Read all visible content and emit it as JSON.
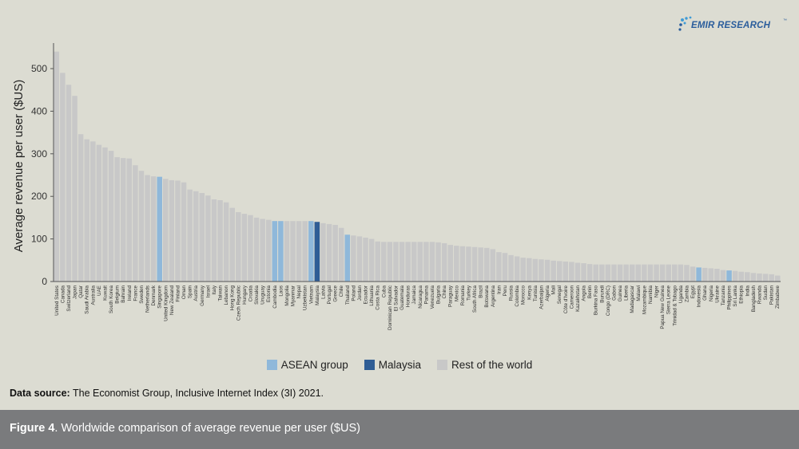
{
  "logo": {
    "text": "EMIR RESEARCH",
    "tm": "™"
  },
  "legend": [
    {
      "label": "ASEAN group",
      "color": "#8fb8da"
    },
    {
      "label": "Malaysia",
      "color": "#2f5d95"
    },
    {
      "label": "Rest of the world",
      "color": "#c8c8c8"
    }
  ],
  "source": {
    "label": "Data source:",
    "text": " The Economist Group, Inclusive Internet Index (3I) 2021."
  },
  "caption": {
    "figure_label": "Figure 4",
    "text": ". Worldwide comparison of average revenue per user ($US)"
  },
  "chart_data": {
    "type": "bar",
    "ylabel": "Average revenue per user ($US)",
    "xlabel": "",
    "ylim": [
      0,
      560
    ],
    "yticks": [
      0,
      100,
      200,
      300,
      400,
      500
    ],
    "grid": false,
    "legend_position": "bottom",
    "colors": {
      "asean": "#8fb8da",
      "malaysia": "#2f5d95",
      "rest": "#c8c8c8"
    },
    "bars": [
      {
        "x": "United States",
        "y": 540,
        "g": "rest"
      },
      {
        "x": "Canada",
        "y": 490,
        "g": "rest"
      },
      {
        "x": "Switzerland",
        "y": 462,
        "g": "rest"
      },
      {
        "x": "Japan",
        "y": 436,
        "g": "rest"
      },
      {
        "x": "Qatar",
        "y": 346,
        "g": "rest"
      },
      {
        "x": "Saudi Arabia",
        "y": 334,
        "g": "rest"
      },
      {
        "x": "Australia",
        "y": 329,
        "g": "rest"
      },
      {
        "x": "UAE",
        "y": 321,
        "g": "rest"
      },
      {
        "x": "Kuwait",
        "y": 315,
        "g": "rest"
      },
      {
        "x": "South Korea",
        "y": 307,
        "g": "rest"
      },
      {
        "x": "Belgium",
        "y": 292,
        "g": "rest"
      },
      {
        "x": "Bahrain",
        "y": 290,
        "g": "rest"
      },
      {
        "x": "Ireland",
        "y": 289,
        "g": "rest"
      },
      {
        "x": "France",
        "y": 273,
        "g": "rest"
      },
      {
        "x": "Sweden",
        "y": 260,
        "g": "rest"
      },
      {
        "x": "Netherlands",
        "y": 250,
        "g": "rest"
      },
      {
        "x": "Denmark",
        "y": 247,
        "g": "rest"
      },
      {
        "x": "Singapore",
        "y": 246,
        "g": "asean"
      },
      {
        "x": "United Kingdom",
        "y": 241,
        "g": "rest"
      },
      {
        "x": "New Zealand",
        "y": 238,
        "g": "rest"
      },
      {
        "x": "Finland",
        "y": 237,
        "g": "rest"
      },
      {
        "x": "Oman",
        "y": 233,
        "g": "rest"
      },
      {
        "x": "Spain",
        "y": 216,
        "g": "rest"
      },
      {
        "x": "Austria",
        "y": 212,
        "g": "rest"
      },
      {
        "x": "Germany",
        "y": 208,
        "g": "rest"
      },
      {
        "x": "Israel",
        "y": 202,
        "g": "rest"
      },
      {
        "x": "Italy",
        "y": 193,
        "g": "rest"
      },
      {
        "x": "Taiwan",
        "y": 191,
        "g": "rest"
      },
      {
        "x": "Lebanon",
        "y": 186,
        "g": "rest"
      },
      {
        "x": "Hong Kong",
        "y": 173,
        "g": "rest"
      },
      {
        "x": "Czech Republic",
        "y": 163,
        "g": "rest"
      },
      {
        "x": "Hungary",
        "y": 159,
        "g": "rest"
      },
      {
        "x": "Croatia",
        "y": 156,
        "g": "rest"
      },
      {
        "x": "Slovakia",
        "y": 150,
        "g": "rest"
      },
      {
        "x": "Uruguay",
        "y": 147,
        "g": "rest"
      },
      {
        "x": "Estonia",
        "y": 145,
        "g": "rest"
      },
      {
        "x": "Cambodia",
        "y": 142,
        "g": "asean"
      },
      {
        "x": "Laos",
        "y": 142,
        "g": "asean"
      },
      {
        "x": "Mongolia",
        "y": 142,
        "g": "rest"
      },
      {
        "x": "Myanmar",
        "y": 142,
        "g": "rest"
      },
      {
        "x": "Nepal",
        "y": 142,
        "g": "rest"
      },
      {
        "x": "Uzbekistan",
        "y": 142,
        "g": "rest"
      },
      {
        "x": "Vietnam",
        "y": 142,
        "g": "asean"
      },
      {
        "x": "Malaysia",
        "y": 140,
        "g": "malaysia"
      },
      {
        "x": "Latvia",
        "y": 137,
        "g": "rest"
      },
      {
        "x": "Portugal",
        "y": 135,
        "g": "rest"
      },
      {
        "x": "Greece",
        "y": 133,
        "g": "rest"
      },
      {
        "x": "Chile",
        "y": 126,
        "g": "rest"
      },
      {
        "x": "Thailand",
        "y": 110,
        "g": "asean"
      },
      {
        "x": "Poland",
        "y": 108,
        "g": "rest"
      },
      {
        "x": "Jordan",
        "y": 106,
        "g": "rest"
      },
      {
        "x": "Ecuador",
        "y": 103,
        "g": "rest"
      },
      {
        "x": "Lithuania",
        "y": 100,
        "g": "rest"
      },
      {
        "x": "Costa Rica",
        "y": 94,
        "g": "rest"
      },
      {
        "x": "Cuba",
        "y": 93,
        "g": "rest"
      },
      {
        "x": "Dominican Republic",
        "y": 93,
        "g": "rest"
      },
      {
        "x": "El Salvador",
        "y": 93,
        "g": "rest"
      },
      {
        "x": "Guatemala",
        "y": 93,
        "g": "rest"
      },
      {
        "x": "Honduras",
        "y": 93,
        "g": "rest"
      },
      {
        "x": "Jamaica",
        "y": 93,
        "g": "rest"
      },
      {
        "x": "Nicaragua",
        "y": 93,
        "g": "rest"
      },
      {
        "x": "Panama",
        "y": 93,
        "g": "rest"
      },
      {
        "x": "Venezuela",
        "y": 93,
        "g": "rest"
      },
      {
        "x": "Bulgaria",
        "y": 92,
        "g": "rest"
      },
      {
        "x": "China",
        "y": 90,
        "g": "rest"
      },
      {
        "x": "Paraguay",
        "y": 86,
        "g": "rest"
      },
      {
        "x": "Mexico",
        "y": 84,
        "g": "rest"
      },
      {
        "x": "Romania",
        "y": 83,
        "g": "rest"
      },
      {
        "x": "Turkey",
        "y": 82,
        "g": "rest"
      },
      {
        "x": "South Africa",
        "y": 81,
        "g": "rest"
      },
      {
        "x": "Brazil",
        "y": 80,
        "g": "rest"
      },
      {
        "x": "Botswana",
        "y": 79,
        "g": "rest"
      },
      {
        "x": "Argentina",
        "y": 76,
        "g": "rest"
      },
      {
        "x": "Iran",
        "y": 69,
        "g": "rest"
      },
      {
        "x": "Peru",
        "y": 67,
        "g": "rest"
      },
      {
        "x": "Russia",
        "y": 62,
        "g": "rest"
      },
      {
        "x": "Colombia",
        "y": 59,
        "g": "rest"
      },
      {
        "x": "Morocco",
        "y": 56,
        "g": "rest"
      },
      {
        "x": "Kenya",
        "y": 55,
        "g": "rest"
      },
      {
        "x": "Tunisia",
        "y": 53,
        "g": "rest"
      },
      {
        "x": "Azerbaijan",
        "y": 52,
        "g": "rest"
      },
      {
        "x": "Algeria",
        "y": 51,
        "g": "rest"
      },
      {
        "x": "Mali",
        "y": 49,
        "g": "rest"
      },
      {
        "x": "Senegal",
        "y": 48,
        "g": "rest"
      },
      {
        "x": "Côte d'Ivoire",
        "y": 47,
        "g": "rest"
      },
      {
        "x": "Cameroon",
        "y": 46,
        "g": "rest"
      },
      {
        "x": "Kazakhstan",
        "y": 44,
        "g": "rest"
      },
      {
        "x": "Angola",
        "y": 43,
        "g": "rest"
      },
      {
        "x": "Benin",
        "y": 41,
        "g": "rest"
      },
      {
        "x": "Burkina Faso",
        "y": 40,
        "g": "rest"
      },
      {
        "x": "Burundi",
        "y": 40,
        "g": "rest"
      },
      {
        "x": "Congo (DRC)",
        "y": 40,
        "g": "rest"
      },
      {
        "x": "Gabon",
        "y": 40,
        "g": "rest"
      },
      {
        "x": "Guinea",
        "y": 40,
        "g": "rest"
      },
      {
        "x": "Liberia",
        "y": 40,
        "g": "rest"
      },
      {
        "x": "Madagascar",
        "y": 40,
        "g": "rest"
      },
      {
        "x": "Malawi",
        "y": 40,
        "g": "rest"
      },
      {
        "x": "Mozambique",
        "y": 40,
        "g": "rest"
      },
      {
        "x": "Namibia",
        "y": 40,
        "g": "rest"
      },
      {
        "x": "Niger",
        "y": 40,
        "g": "rest"
      },
      {
        "x": "Papua New Guinea",
        "y": 40,
        "g": "rest"
      },
      {
        "x": "Sierra Leone",
        "y": 40,
        "g": "rest"
      },
      {
        "x": "Trinidad & Tobago",
        "y": 40,
        "g": "rest"
      },
      {
        "x": "Uganda",
        "y": 40,
        "g": "rest"
      },
      {
        "x": "Zambia",
        "y": 39,
        "g": "rest"
      },
      {
        "x": "Egypt",
        "y": 35,
        "g": "rest"
      },
      {
        "x": "Indonesia",
        "y": 33,
        "g": "asean"
      },
      {
        "x": "Ghana",
        "y": 32,
        "g": "rest"
      },
      {
        "x": "Nigeria",
        "y": 31,
        "g": "rest"
      },
      {
        "x": "Ukraine",
        "y": 30,
        "g": "rest"
      },
      {
        "x": "Tanzania",
        "y": 27,
        "g": "rest"
      },
      {
        "x": "Philippines",
        "y": 26,
        "g": "asean"
      },
      {
        "x": "Sri Lanka",
        "y": 25,
        "g": "rest"
      },
      {
        "x": "Ethiopia",
        "y": 23,
        "g": "rest"
      },
      {
        "x": "India",
        "y": 22,
        "g": "rest"
      },
      {
        "x": "Bangladesh",
        "y": 20,
        "g": "rest"
      },
      {
        "x": "Rwanda",
        "y": 19,
        "g": "rest"
      },
      {
        "x": "Sudan",
        "y": 18,
        "g": "rest"
      },
      {
        "x": "Pakistan",
        "y": 17,
        "g": "rest"
      },
      {
        "x": "Zimbabwe",
        "y": 14,
        "g": "rest"
      }
    ]
  }
}
